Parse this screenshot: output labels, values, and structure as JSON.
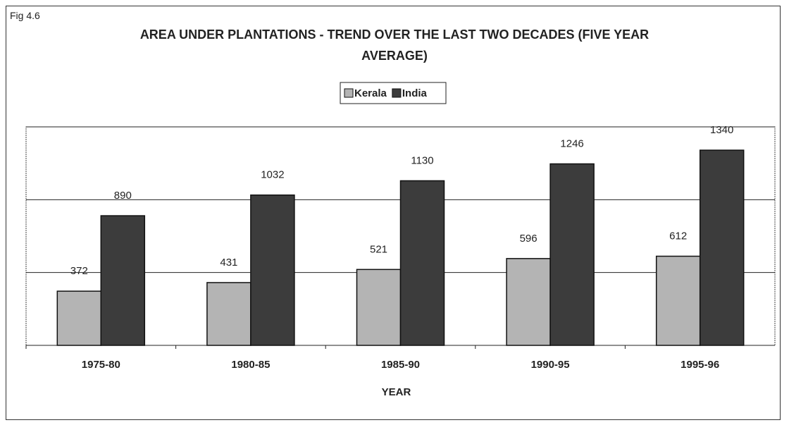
{
  "chart_data": {
    "type": "bar",
    "figure_label": "Fig 4.6",
    "title": "AREA UNDER PLANTATIONS - TREND OVER THE LAST TWO DECADES (FIVE YEAR AVERAGE)",
    "x_label": "YEAR",
    "categories": [
      "1975-80",
      "1980-85",
      "1985-90",
      "1990-95",
      "1995-96"
    ],
    "series": [
      {
        "name": "Kerala",
        "color": "#b4b4b4",
        "values": [
          372,
          431,
          521,
          596,
          612
        ]
      },
      {
        "name": "India",
        "color": "#3c3c3c",
        "values": [
          890,
          1032,
          1130,
          1246,
          1340
        ]
      }
    ],
    "ylim": [
      0,
      1500
    ],
    "yticks": [
      0,
      500,
      1000,
      1500
    ],
    "grid": true,
    "legend": "top"
  }
}
